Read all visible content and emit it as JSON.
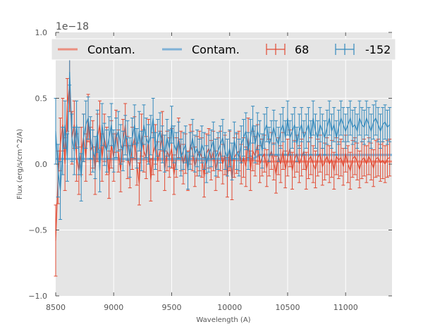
{
  "chart_data": {
    "type": "line",
    "title": "",
    "xlabel": "Wavelength (A)",
    "ylabel": "Flux (erg/s/cm^2/A)",
    "offset_text": "1e−18",
    "xlim": [
      8500,
      11400
    ],
    "ylim": [
      -1.0,
      1.0
    ],
    "x_ticks": [
      8500,
      9000,
      9500,
      10000,
      10500,
      11000
    ],
    "x_tick_labels": [
      "8500",
      "9000",
      "9500",
      "10000",
      "10500",
      "11000"
    ],
    "y_ticks": [
      -1.0,
      -0.5,
      0.0,
      0.5,
      1.0
    ],
    "y_tick_labels": [
      "−1.0",
      "−0.5",
      "0.0",
      "0.5",
      "1.0"
    ],
    "grid": true,
    "legend_placement": "top",
    "colors": {
      "background": "#e5e5e5",
      "grid": "#ffffff",
      "red": "#e24a33",
      "blue": "#348abd",
      "red_contam": "#eb8f80",
      "blue_contam": "#7fb1d6"
    },
    "legend": [
      {
        "label": "Contam.",
        "color": "#eb8f80",
        "kind": "line"
      },
      {
        "label": "Contam.",
        "color": "#7fb1d6",
        "kind": "line"
      },
      {
        "label": "68",
        "color": "#e24a33",
        "kind": "errorbar"
      },
      {
        "label": "-152",
        "color": "#348abd",
        "kind": "errorbar"
      }
    ],
    "series": [
      {
        "name": "68",
        "kind": "errorbar",
        "color": "#e24a33",
        "x": [
          8500,
          8520,
          8540,
          8560,
          8580,
          8600,
          8620,
          8640,
          8660,
          8680,
          8700,
          8720,
          8740,
          8760,
          8780,
          8800,
          8820,
          8840,
          8860,
          8880,
          8900,
          8920,
          8940,
          8960,
          8980,
          9000,
          9020,
          9040,
          9060,
          9080,
          9100,
          9120,
          9140,
          9160,
          9180,
          9200,
          9220,
          9240,
          9260,
          9280,
          9300,
          9320,
          9340,
          9360,
          9380,
          9400,
          9420,
          9440,
          9460,
          9480,
          9500,
          9520,
          9540,
          9560,
          9580,
          9600,
          9620,
          9640,
          9660,
          9680,
          9700,
          9720,
          9740,
          9760,
          9780,
          9800,
          9820,
          9840,
          9860,
          9880,
          9900,
          9920,
          9940,
          9960,
          9980,
          10000,
          10020,
          10040,
          10060,
          10080,
          10100,
          10120,
          10140,
          10160,
          10180,
          10200,
          10220,
          10240,
          10260,
          10280,
          10300,
          10320,
          10340,
          10360,
          10380,
          10400,
          10420,
          10440,
          10460,
          10480,
          10500,
          10520,
          10540,
          10560,
          10580,
          10600,
          10620,
          10640,
          10660,
          10680,
          10700,
          10720,
          10740,
          10760,
          10780,
          10800,
          10820,
          10840,
          10860,
          10880,
          10900,
          10920,
          10940,
          10960,
          10980,
          11000,
          11020,
          11040,
          11060,
          11080,
          11100,
          11120,
          11140,
          11160,
          11180,
          11200,
          11220,
          11240,
          11260,
          11280,
          11300,
          11320,
          11340,
          11360,
          11380
        ],
        "y": [
          -0.58,
          -0.1,
          0.15,
          0.3,
          0.0,
          0.45,
          0.6,
          0.2,
          0.3,
          0.05,
          -0.05,
          0.1,
          0.2,
          0.05,
          0.35,
          0.1,
          0.15,
          -0.05,
          0.2,
          0.3,
          0.05,
          0.2,
          0.1,
          -0.08,
          0.15,
          0.05,
          0.25,
          0.1,
          -0.05,
          0.18,
          0.3,
          0.05,
          -0.02,
          0.12,
          0.2,
          0.0,
          -0.15,
          0.22,
          0.1,
          0.05,
          0.18,
          -0.12,
          0.08,
          0.15,
          0.02,
          0.1,
          0.25,
          -0.05,
          0.1,
          0.05,
          0.12,
          -0.08,
          0.05,
          0.2,
          0.1,
          0.0,
          0.08,
          -0.05,
          0.15,
          0.1,
          -0.02,
          0.06,
          0.1,
          0.05,
          -0.1,
          0.08,
          0.12,
          0.03,
          0.1,
          -0.05,
          0.05,
          0.1,
          0.0,
          0.07,
          -0.1,
          0.1,
          -0.12,
          0.05,
          0.08,
          0.1,
          0.0,
          0.05,
          -0.02,
          0.2,
          -0.05,
          0.1,
          0.06,
          0.15,
          0.0,
          0.05,
          0.08,
          -0.03,
          0.05,
          0.1,
          0.02,
          -0.08,
          0.06,
          0.0,
          0.1,
          -0.04,
          0.05,
          0.12,
          -0.05,
          0.04,
          0.08,
          0.0,
          0.05,
          0.1,
          -0.05,
          0.03,
          0.06,
          0.0,
          -0.04,
          0.05,
          0.08,
          -0.02,
          0.02,
          0.06,
          0.0,
          0.04,
          -0.05,
          0.06,
          0.03,
          0.05,
          -0.02,
          0.08,
          0.0,
          -0.05,
          0.04,
          0.06,
          0.02,
          -0.04,
          0.03,
          0.05,
          0.0,
          0.06,
          0.02,
          -0.03,
          0.04,
          0.05,
          0.01,
          0.03,
          0.0,
          0.04,
          0.05
        ],
        "err": [
          0.27,
          0.2,
          0.2,
          0.2,
          0.2,
          0.2,
          0.2,
          0.2,
          0.18,
          0.18,
          0.18,
          0.18,
          0.18,
          0.18,
          0.18,
          0.18,
          0.18,
          0.18,
          0.18,
          0.18,
          0.18,
          0.18,
          0.18,
          0.18,
          0.18,
          0.18,
          0.16,
          0.16,
          0.16,
          0.16,
          0.16,
          0.16,
          0.16,
          0.16,
          0.16,
          0.16,
          0.16,
          0.16,
          0.16,
          0.16,
          0.16,
          0.16,
          0.16,
          0.15,
          0.15,
          0.15,
          0.15,
          0.15,
          0.15,
          0.15,
          0.15,
          0.15,
          0.15,
          0.15,
          0.15,
          0.15,
          0.15,
          0.15,
          0.15,
          0.15,
          0.15,
          0.15,
          0.15,
          0.15,
          0.15,
          0.15,
          0.15,
          0.15,
          0.15,
          0.15,
          0.15,
          0.15,
          0.15,
          0.15,
          0.15,
          0.15,
          0.15,
          0.15,
          0.15,
          0.15,
          0.15,
          0.15,
          0.15,
          0.15,
          0.15,
          0.15,
          0.15,
          0.15,
          0.14,
          0.14,
          0.14,
          0.14,
          0.14,
          0.14,
          0.14,
          0.14,
          0.14,
          0.14,
          0.14,
          0.14,
          0.14,
          0.14,
          0.14,
          0.14,
          0.14,
          0.14,
          0.14,
          0.14,
          0.14,
          0.14,
          0.14,
          0.14,
          0.14,
          0.14,
          0.14,
          0.14,
          0.14,
          0.14,
          0.14,
          0.14,
          0.14,
          0.14,
          0.14,
          0.14,
          0.14,
          0.14,
          0.14,
          0.14,
          0.14,
          0.14,
          0.14,
          0.14,
          0.14,
          0.14,
          0.14,
          0.14,
          0.14,
          0.14,
          0.14,
          0.14,
          0.14,
          0.14,
          0.14,
          0.14,
          0.14
        ]
      },
      {
        "name": "-152",
        "kind": "errorbar",
        "color": "#348abd",
        "x": [
          8500,
          8520,
          8540,
          8560,
          8580,
          8600,
          8620,
          8640,
          8660,
          8680,
          8700,
          8720,
          8740,
          8760,
          8780,
          8800,
          8820,
          8840,
          8860,
          8880,
          8900,
          8920,
          8940,
          8960,
          8980,
          9000,
          9020,
          9040,
          9060,
          9080,
          9100,
          9120,
          9140,
          9160,
          9180,
          9200,
          9220,
          9240,
          9260,
          9280,
          9300,
          9320,
          9340,
          9360,
          9380,
          9400,
          9420,
          9440,
          9460,
          9480,
          9500,
          9520,
          9540,
          9560,
          9580,
          9600,
          9620,
          9640,
          9660,
          9680,
          9700,
          9720,
          9740,
          9760,
          9780,
          9800,
          9820,
          9840,
          9860,
          9880,
          9900,
          9920,
          9940,
          9960,
          9980,
          10000,
          10020,
          10040,
          10060,
          10080,
          10100,
          10120,
          10140,
          10160,
          10180,
          10200,
          10220,
          10240,
          10260,
          10280,
          10300,
          10320,
          10340,
          10360,
          10380,
          10400,
          10420,
          10440,
          10460,
          10480,
          10500,
          10520,
          10540,
          10560,
          10580,
          10600,
          10620,
          10640,
          10660,
          10680,
          10700,
          10720,
          10740,
          10760,
          10780,
          10800,
          10820,
          10840,
          10860,
          10880,
          10900,
          10920,
          10940,
          10960,
          10980,
          11000,
          11020,
          11040,
          11060,
          11080,
          11100,
          11120,
          11140,
          11160,
          11180,
          11200,
          11220,
          11240,
          11260,
          11280,
          11300,
          11320,
          11340,
          11360,
          11380
        ],
        "y": [
          0.25,
          -0.05,
          -0.2,
          0.1,
          0.3,
          0.05,
          0.7,
          0.2,
          0.1,
          0.3,
          0.1,
          -0.1,
          0.2,
          0.3,
          0.35,
          0.2,
          0.1,
          0.05,
          0.25,
          -0.05,
          0.3,
          0.15,
          0.1,
          0.2,
          0.3,
          0.1,
          0.2,
          0.25,
          0.15,
          0.1,
          0.22,
          0.18,
          0.05,
          0.2,
          0.3,
          0.12,
          0.25,
          0.1,
          0.3,
          0.2,
          0.15,
          0.22,
          0.35,
          0.1,
          0.2,
          0.25,
          0.15,
          0.08,
          0.2,
          0.12,
          0.3,
          0.15,
          0.1,
          0.18,
          0.05,
          0.1,
          0.15,
          -0.05,
          0.1,
          0.2,
          0.08,
          0.12,
          0.05,
          0.15,
          0.1,
          0.0,
          0.08,
          0.12,
          0.18,
          0.05,
          0.1,
          0.15,
          0.2,
          0.1,
          0.05,
          0.12,
          0.02,
          0.18,
          0.1,
          0.05,
          0.15,
          0.2,
          0.25,
          0.1,
          0.2,
          0.3,
          0.15,
          0.25,
          0.2,
          0.1,
          0.25,
          0.3,
          0.15,
          0.2,
          0.28,
          0.2,
          0.15,
          0.25,
          0.3,
          0.2,
          0.35,
          0.2,
          0.25,
          0.3,
          0.15,
          0.25,
          0.3,
          0.2,
          0.25,
          0.3,
          0.2,
          0.35,
          0.25,
          0.2,
          0.3,
          0.25,
          0.2,
          0.28,
          0.35,
          0.25,
          0.3,
          0.2,
          0.28,
          0.35,
          0.3,
          0.25,
          0.3,
          0.35,
          0.28,
          0.3,
          0.25,
          0.35,
          0.3,
          0.28,
          0.35,
          0.3,
          0.25,
          0.32,
          0.35,
          0.3,
          0.25,
          0.3,
          0.32,
          0.28,
          0.3
        ],
        "err": [
          0.25,
          0.2,
          0.22,
          0.18,
          0.18,
          0.18,
          0.1,
          0.18,
          0.18,
          0.18,
          0.18,
          0.18,
          0.18,
          0.18,
          0.16,
          0.16,
          0.16,
          0.16,
          0.16,
          0.16,
          0.16,
          0.16,
          0.16,
          0.16,
          0.16,
          0.16,
          0.15,
          0.15,
          0.15,
          0.15,
          0.15,
          0.15,
          0.15,
          0.15,
          0.15,
          0.15,
          0.15,
          0.15,
          0.15,
          0.15,
          0.15,
          0.15,
          0.15,
          0.14,
          0.14,
          0.14,
          0.14,
          0.14,
          0.14,
          0.14,
          0.14,
          0.14,
          0.14,
          0.14,
          0.14,
          0.14,
          0.14,
          0.14,
          0.14,
          0.14,
          0.14,
          0.14,
          0.14,
          0.14,
          0.14,
          0.14,
          0.14,
          0.14,
          0.14,
          0.14,
          0.14,
          0.14,
          0.14,
          0.14,
          0.14,
          0.14,
          0.14,
          0.14,
          0.14,
          0.14,
          0.14,
          0.14,
          0.14,
          0.14,
          0.14,
          0.14,
          0.14,
          0.14,
          0.13,
          0.13,
          0.13,
          0.13,
          0.13,
          0.13,
          0.13,
          0.13,
          0.13,
          0.13,
          0.13,
          0.13,
          0.13,
          0.13,
          0.13,
          0.13,
          0.13,
          0.13,
          0.13,
          0.13,
          0.13,
          0.13,
          0.13,
          0.13,
          0.13,
          0.13,
          0.13,
          0.13,
          0.13,
          0.13,
          0.13,
          0.13,
          0.13,
          0.13,
          0.13,
          0.13,
          0.13,
          0.13,
          0.13,
          0.13,
          0.13,
          0.13,
          0.13,
          0.13,
          0.13,
          0.13,
          0.13,
          0.13,
          0.13,
          0.13,
          0.13,
          0.13,
          0.13,
          0.13,
          0.13,
          0.13,
          0.13
        ]
      },
      {
        "name": "Contam.",
        "kind": "line",
        "color": "#eb8f80",
        "x": [
          8500,
          10200,
          10260,
          11400
        ],
        "y": [
          0.04,
          0.03,
          0.02,
          0.02
        ]
      },
      {
        "name": "Contam.",
        "kind": "line",
        "color": "#7fb1d6",
        "x": [
          8500,
          10200,
          10260,
          11400
        ],
        "y": [
          0.04,
          0.04,
          0.07,
          0.07
        ]
      }
    ]
  }
}
